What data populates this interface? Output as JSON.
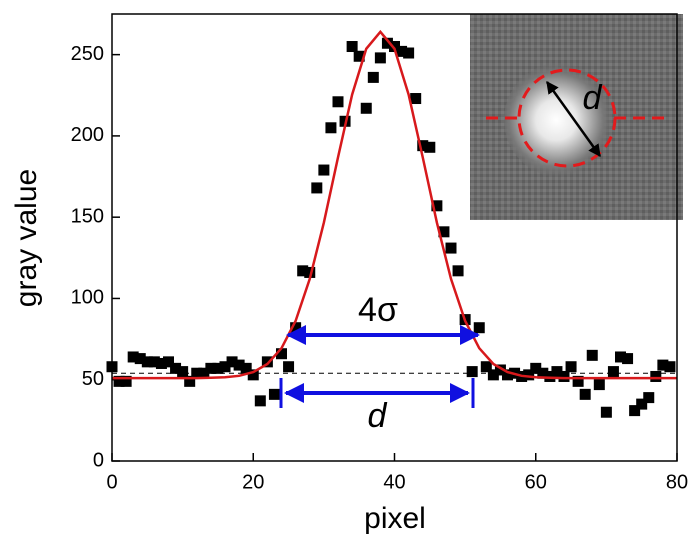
{
  "chart_data": {
    "type": "scatter",
    "x_label": "pixel",
    "y_label": "gray value",
    "xlim": [
      0,
      80
    ],
    "ylim": [
      0,
      275
    ],
    "xticks": [
      0,
      20,
      40,
      60,
      80
    ],
    "yticks": [
      0,
      50,
      100,
      150,
      200,
      250
    ],
    "baseline": 54,
    "annotations": [
      "4σ",
      "d"
    ],
    "inset_label": "d",
    "series": [
      {
        "type": "scatter",
        "color": "#000000",
        "x": [
          0,
          1,
          2,
          3,
          4,
          5,
          6,
          7,
          8,
          9,
          10,
          11,
          12,
          13,
          14,
          15,
          16,
          17,
          18,
          19,
          20,
          21,
          22,
          23,
          24,
          25,
          26,
          27,
          28,
          29,
          30,
          31,
          32,
          33,
          34,
          35,
          36,
          37,
          38,
          39,
          40,
          41,
          42,
          43,
          44,
          45,
          46,
          47,
          48,
          49,
          50,
          51,
          52,
          53,
          54,
          55,
          56,
          57,
          58,
          59,
          60,
          61,
          62,
          63,
          64,
          65,
          66,
          67,
          68,
          69,
          70,
          71,
          72,
          73,
          74,
          75,
          76,
          77,
          78,
          79
        ],
        "values": [
          58,
          49,
          49,
          64,
          63,
          61,
          61,
          60,
          61,
          57,
          55,
          49,
          54,
          54,
          57,
          57,
          58,
          61,
          59,
          57,
          53,
          37,
          61,
          41,
          66,
          58,
          82,
          117,
          116,
          168,
          179,
          205,
          221,
          209,
          255,
          249,
          217,
          236,
          248,
          257,
          255,
          252,
          251,
          223,
          194,
          193,
          157,
          141,
          131,
          117,
          87,
          55,
          82,
          58,
          53,
          56,
          53,
          54,
          52,
          53,
          57,
          54,
          52,
          55,
          52,
          58,
          49,
          41,
          65,
          47,
          30,
          55,
          64,
          63,
          31,
          35,
          39,
          52,
          59,
          58
        ]
      },
      {
        "type": "line",
        "color": "#d7191c",
        "x": [
          0,
          4,
          8,
          12,
          14,
          16,
          18,
          20,
          22,
          24,
          26,
          28,
          30,
          32,
          34,
          36,
          38,
          40,
          42,
          44,
          46,
          48,
          50,
          52,
          54,
          56,
          58,
          60,
          62,
          64,
          68,
          72,
          76,
          80
        ],
        "values": [
          51,
          51,
          51,
          51,
          51.2,
          51.5,
          52.4,
          54.7,
          59.7,
          69.4,
          86.2,
          112,
          146.7,
          186.8,
          225.4,
          253.6,
          264,
          253.6,
          225.4,
          186.8,
          146.7,
          112,
          86.2,
          69.4,
          59.7,
          54.7,
          52.4,
          51.5,
          51.2,
          51,
          51,
          51,
          51,
          51
        ]
      }
    ]
  }
}
